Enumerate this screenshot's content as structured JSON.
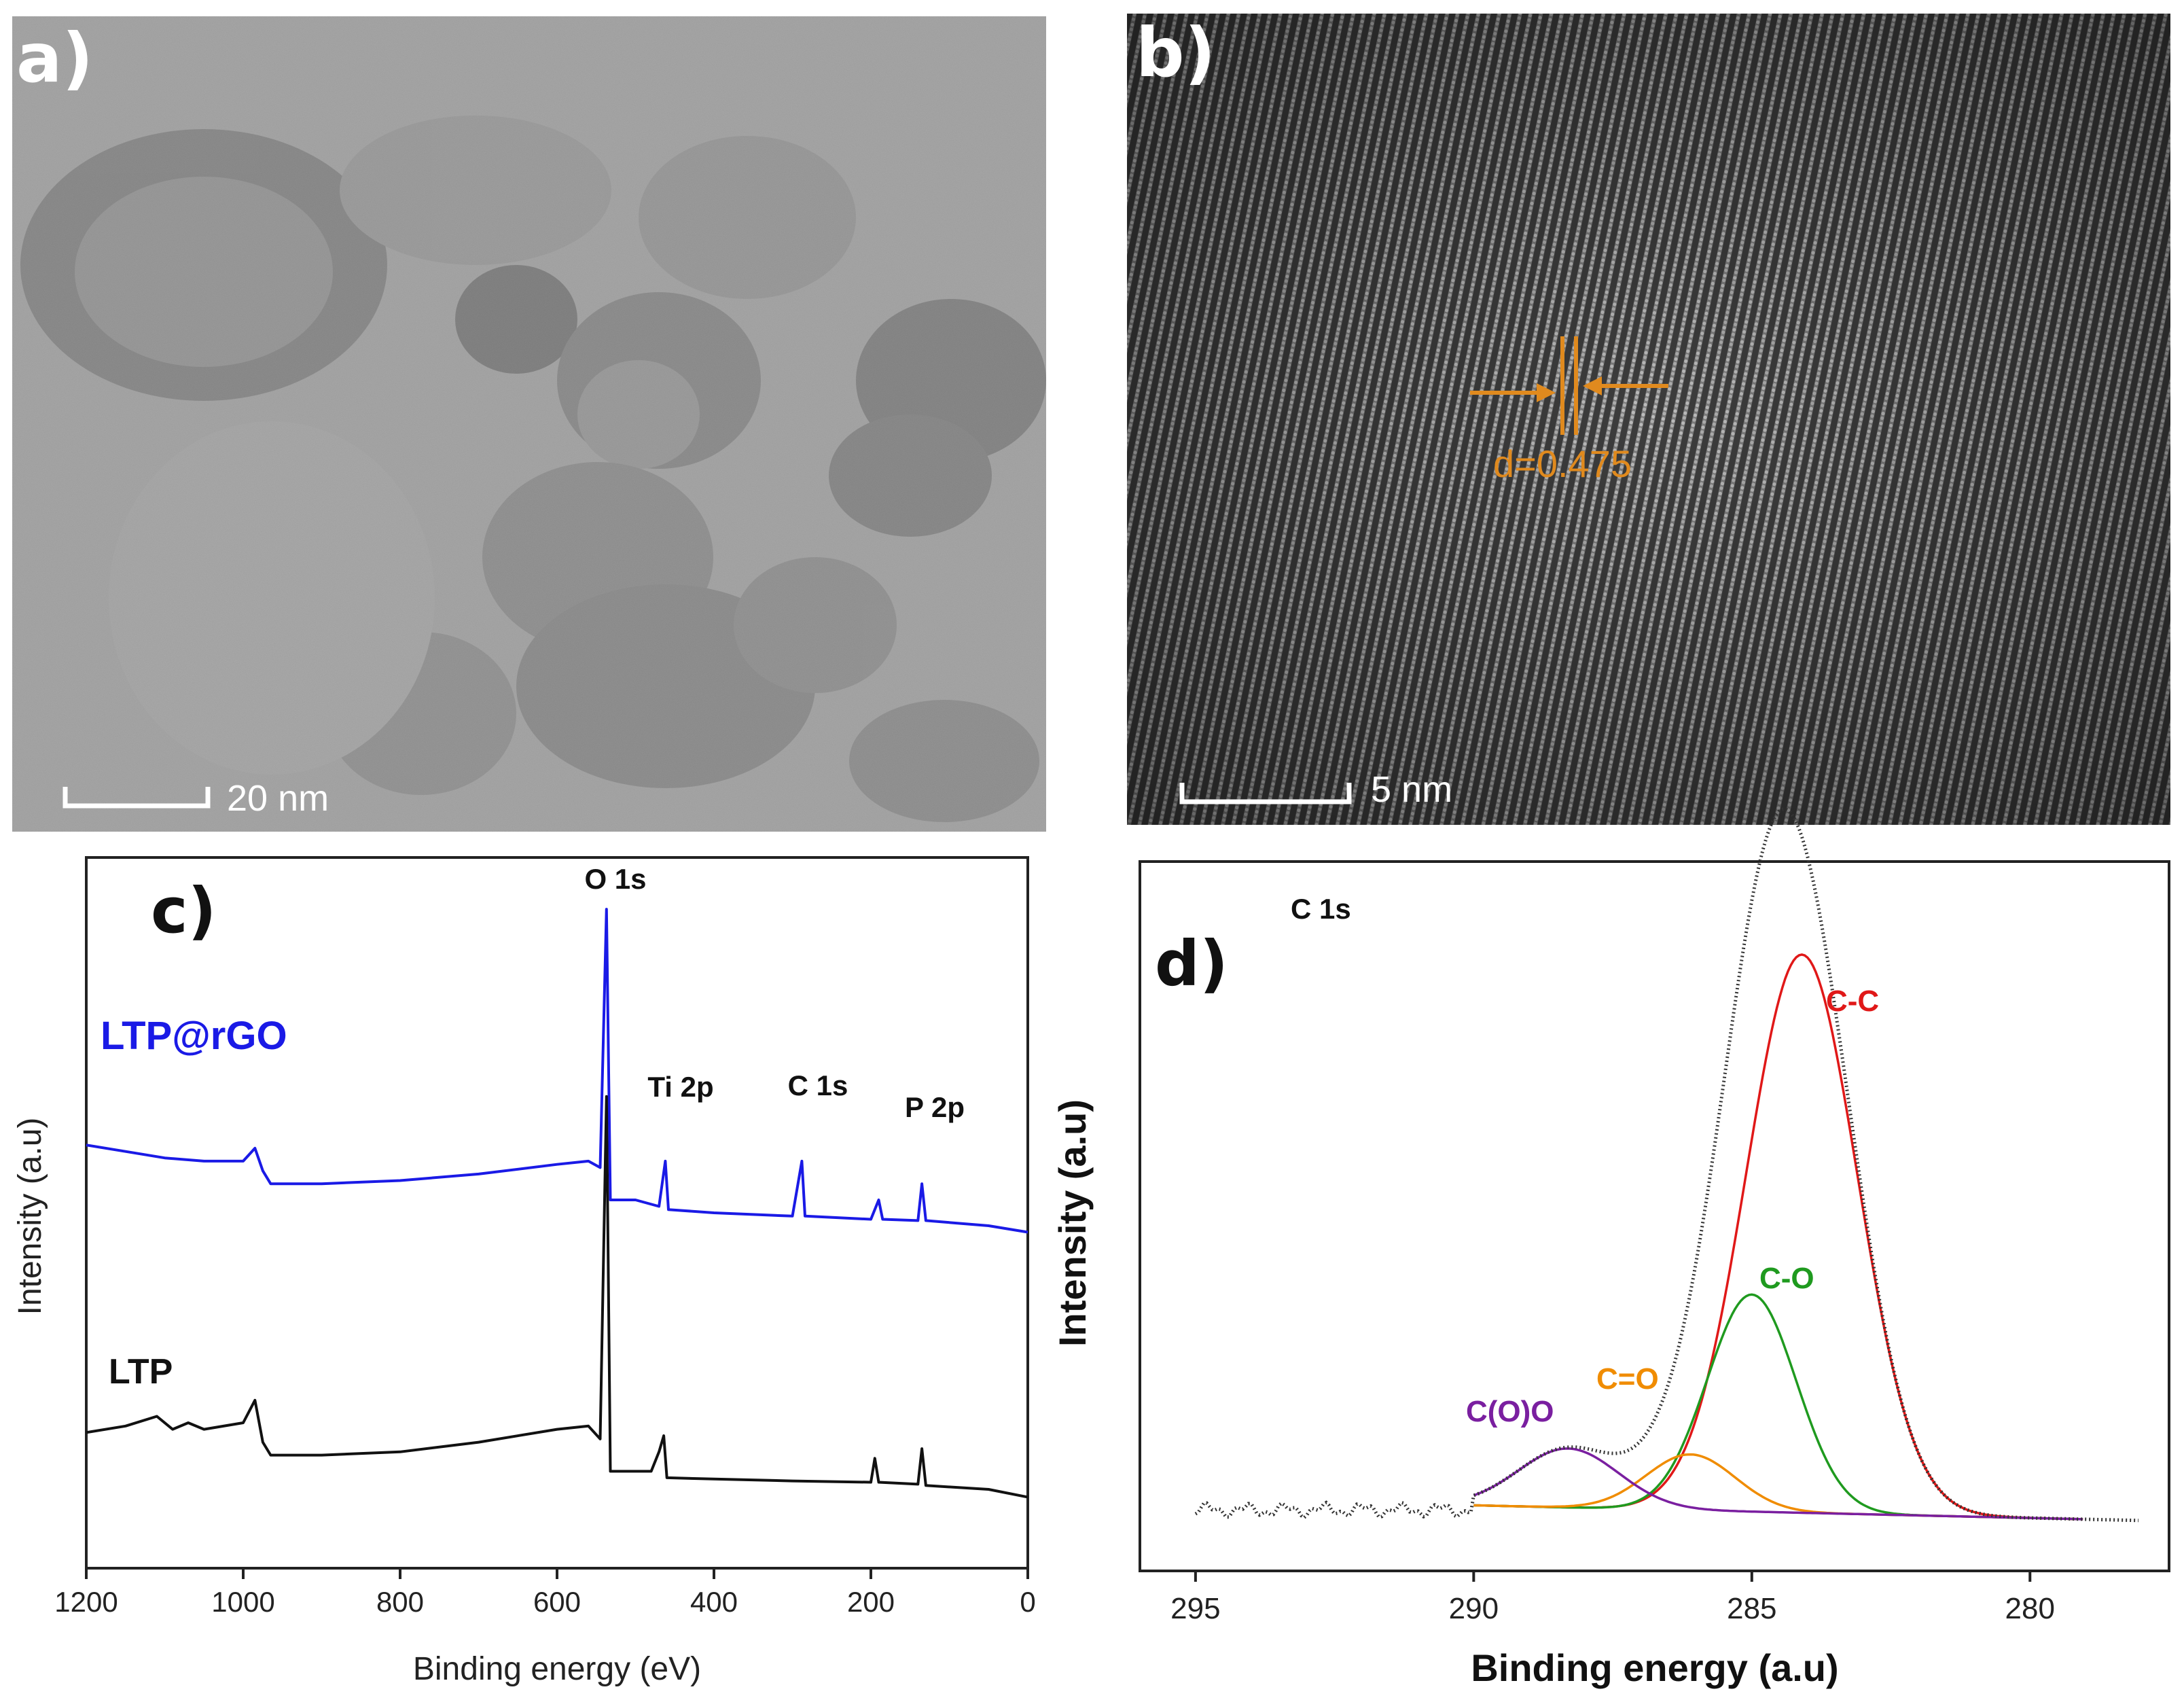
{
  "panels": {
    "a": {
      "letter": "a)",
      "scalebar": "20 nm"
    },
    "b": {
      "letter": "b)",
      "scalebar": "5 nm",
      "d_spacing": "d=0.475",
      "accent": "#e08a1e"
    },
    "c": {
      "letter": "c)"
    },
    "d": {
      "letter": "d)"
    }
  },
  "chart_data": [
    {
      "panel": "c",
      "type": "line",
      "xlabel": "Binding energy (eV)",
      "ylabel": "Intensity (a.u)",
      "xlim": [
        1200,
        0
      ],
      "xticks": [
        1200,
        1000,
        800,
        600,
        400,
        200,
        0
      ],
      "xtick_labels": [
        "1200",
        "1000",
        "800",
        "600",
        "400",
        "200",
        "0"
      ],
      "series": [
        {
          "name": "LTP@rGO",
          "color": "#1a1ae6",
          "points": [
            [
              1200,
              6.55
            ],
            [
              1150,
              6.45
            ],
            [
              1100,
              6.35
            ],
            [
              1050,
              6.3
            ],
            [
              1000,
              6.3
            ],
            [
              985,
              6.5
            ],
            [
              975,
              6.15
            ],
            [
              965,
              5.95
            ],
            [
              900,
              5.95
            ],
            [
              800,
              6.0
            ],
            [
              700,
              6.1
            ],
            [
              600,
              6.25
            ],
            [
              560,
              6.3
            ],
            [
              545,
              6.2
            ],
            [
              537,
              10.2
            ],
            [
              532,
              5.7
            ],
            [
              500,
              5.7
            ],
            [
              470,
              5.6
            ],
            [
              462,
              6.3
            ],
            [
              458,
              5.55
            ],
            [
              400,
              5.5
            ],
            [
              300,
              5.45
            ],
            [
              288,
              6.3
            ],
            [
              284,
              5.45
            ],
            [
              200,
              5.4
            ],
            [
              190,
              5.7
            ],
            [
              185,
              5.4
            ],
            [
              140,
              5.38
            ],
            [
              135,
              5.95
            ],
            [
              130,
              5.38
            ],
            [
              50,
              5.3
            ],
            [
              0,
              5.2
            ]
          ]
        },
        {
          "name": "LTP",
          "color": "#111111",
          "points": [
            [
              1200,
              2.1
            ],
            [
              1150,
              2.2
            ],
            [
              1110,
              2.35
            ],
            [
              1090,
              2.15
            ],
            [
              1070,
              2.25
            ],
            [
              1050,
              2.15
            ],
            [
              1000,
              2.25
            ],
            [
              985,
              2.6
            ],
            [
              975,
              1.95
            ],
            [
              965,
              1.75
            ],
            [
              900,
              1.75
            ],
            [
              800,
              1.8
            ],
            [
              700,
              1.95
            ],
            [
              600,
              2.15
            ],
            [
              560,
              2.2
            ],
            [
              545,
              2.0
            ],
            [
              537,
              7.3
            ],
            [
              532,
              1.5
            ],
            [
              480,
              1.5
            ],
            [
              470,
              1.8
            ],
            [
              464,
              2.05
            ],
            [
              460,
              1.4
            ],
            [
              400,
              1.38
            ],
            [
              300,
              1.35
            ],
            [
              200,
              1.33
            ],
            [
              195,
              1.7
            ],
            [
              190,
              1.33
            ],
            [
              140,
              1.3
            ],
            [
              135,
              1.85
            ],
            [
              130,
              1.28
            ],
            [
              50,
              1.22
            ],
            [
              0,
              1.1
            ]
          ]
        }
      ],
      "annotations": [
        "O 1s",
        "Ti 2p",
        "C 1s",
        "P 2p"
      ]
    },
    {
      "panel": "d",
      "type": "line",
      "xlabel": "Binding energy (a.u)",
      "ylabel": "Intensity (a.u)",
      "xlim": [
        296,
        277.5
      ],
      "xticks": [
        295,
        290,
        285,
        280
      ],
      "xtick_labels": [
        "295",
        "290",
        "285",
        "280"
      ],
      "title": "C 1s",
      "series": [
        {
          "name": "C-C",
          "color": "#e01818",
          "center": 284.1,
          "height": 3.6,
          "sigma": 1.0
        },
        {
          "name": "C-O",
          "color": "#1f9a1f",
          "center": 285.0,
          "height": 1.4,
          "sigma": 0.8
        },
        {
          "name": "C=O",
          "color": "#f08c00",
          "center": 286.1,
          "height": 0.36,
          "sigma": 0.8
        },
        {
          "name": "C(O)O",
          "color": "#7a1fa0",
          "center": 288.3,
          "height": 0.38,
          "sigma": 0.9
        }
      ],
      "envelope": {
        "color": "#333333",
        "range": [
          295,
          278
        ]
      }
    }
  ]
}
